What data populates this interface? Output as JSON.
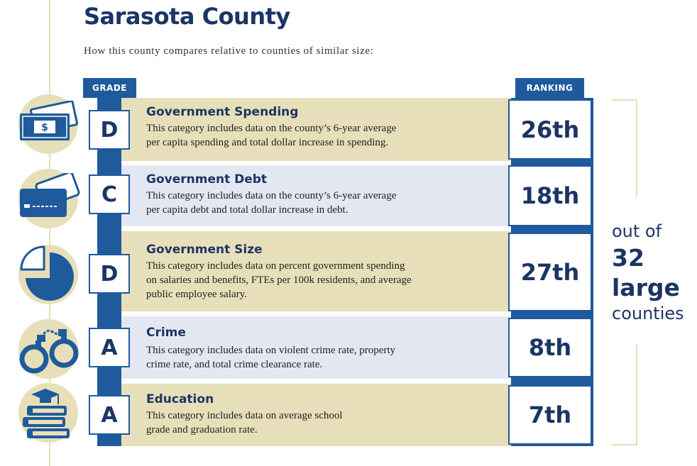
{
  "header": {
    "title": "Sarasota County",
    "subtitle": "How this county compares relative to counties of similar size:"
  },
  "columns": {
    "grade": "GRADE",
    "ranking": "RANKING"
  },
  "categories": [
    {
      "title": "Government Spending",
      "description_lines": [
        "This category includes data on the county’s 6-year average",
        "per capita spending and total dollar increase in spending."
      ],
      "grade": "D",
      "rank": "26th",
      "icon": "money-icon"
    },
    {
      "title": "Government Debt",
      "description_lines": [
        "This category includes data on the county’s 6-year average",
        "per capita debt and total dollar increase in debt."
      ],
      "grade": "C",
      "rank": "18th",
      "icon": "credit-card-icon"
    },
    {
      "title": "Government Size",
      "description_lines": [
        "This category includes data on percent government spending",
        "on salaries and benefits, FTEs per 100k residents, and average",
        "public employee salary."
      ],
      "grade": "D",
      "rank": "27th",
      "icon": "pie-chart-icon"
    },
    {
      "title": "Crime",
      "description_lines": [
        "This category includes data on violent crime rate, property",
        "crime rate, and total crime clearance rate."
      ],
      "grade": "A",
      "rank": "8th",
      "icon": "handcuffs-icon"
    },
    {
      "title": "Education",
      "description_lines": [
        "This category includes data on average school",
        "grade and graduation rate."
      ],
      "grade": "A",
      "rank": "7th",
      "icon": "books-graduation-cap-icon"
    }
  ],
  "summary": {
    "out_of": "out of",
    "number": "32",
    "size_word": "large",
    "noun": "counties"
  },
  "colors": {
    "navy": "#1b3564",
    "blue": "#1f5a9c",
    "tan": "#e7dfb9",
    "light_blue": "#e3e7f1"
  }
}
